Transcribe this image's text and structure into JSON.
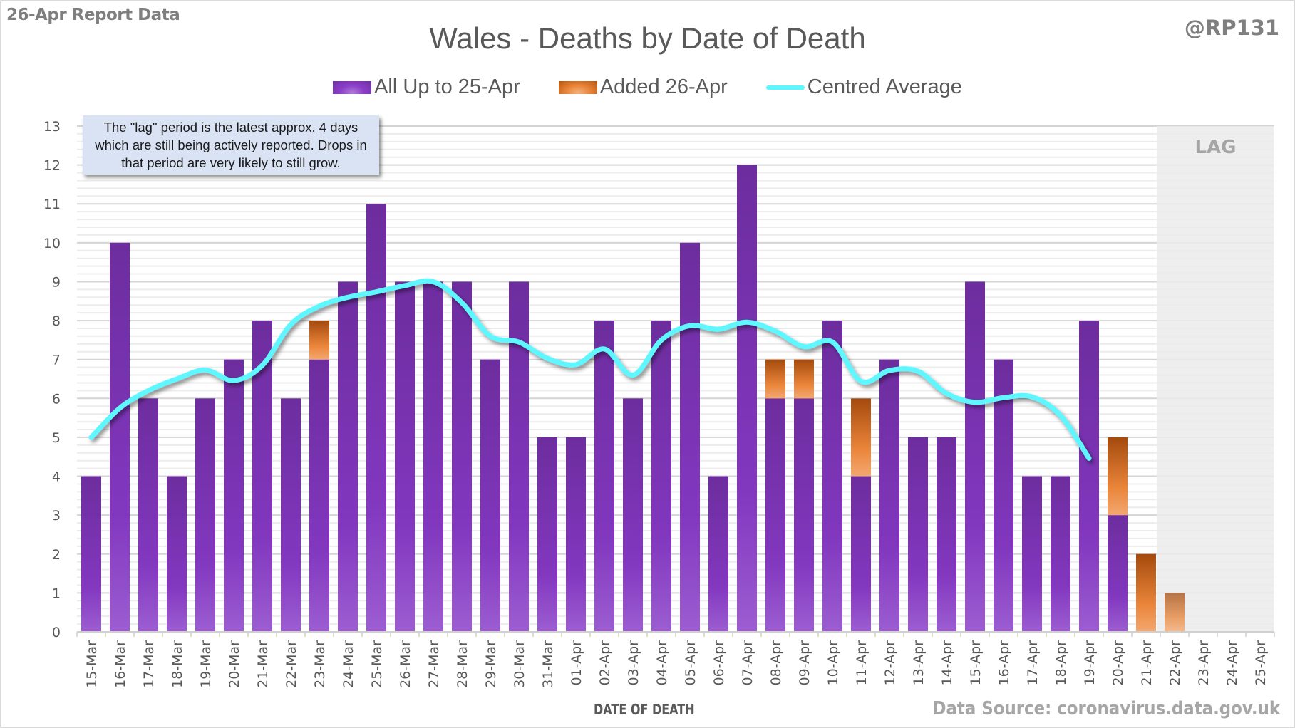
{
  "header": {
    "report_label": "26-Apr Report Data",
    "handle": "@RP131"
  },
  "note": "The \"lag\" period is the latest approx. 4 days which are still being actively reported.  Drops in that period are very likely to still grow.",
  "footer": {
    "source": "Data Source: coronavirus.data.gov.uk"
  },
  "colors": {
    "base": "#7030a0",
    "added": "#e8843a",
    "average": "#5ff7ff",
    "lag_shade": "#ebebeb"
  },
  "chart_data": {
    "type": "bar",
    "stacked": true,
    "title": "Wales - Deaths by Date of Death",
    "xlabel": "DATE OF DEATH",
    "ylabel": "",
    "ylim": [
      0,
      13
    ],
    "yticks": [
      0,
      1,
      2,
      3,
      4,
      5,
      6,
      7,
      8,
      9,
      10,
      11,
      12,
      13
    ],
    "grid": true,
    "legend_position": "top",
    "lag_region": {
      "label": "LAG",
      "from": "22-Apr",
      "to": "25-Apr"
    },
    "categories": [
      "15-Mar",
      "16-Mar",
      "17-Mar",
      "18-Mar",
      "19-Mar",
      "20-Mar",
      "21-Mar",
      "22-Mar",
      "23-Mar",
      "24-Mar",
      "25-Mar",
      "26-Mar",
      "27-Mar",
      "28-Mar",
      "29-Mar",
      "30-Mar",
      "31-Mar",
      "01-Apr",
      "02-Apr",
      "03-Apr",
      "04-Apr",
      "05-Apr",
      "06-Apr",
      "07-Apr",
      "08-Apr",
      "09-Apr",
      "10-Apr",
      "11-Apr",
      "12-Apr",
      "13-Apr",
      "14-Apr",
      "15-Apr",
      "16-Apr",
      "17-Apr",
      "18-Apr",
      "19-Apr",
      "20-Apr",
      "21-Apr",
      "22-Apr",
      "23-Apr",
      "24-Apr",
      "25-Apr"
    ],
    "series": [
      {
        "name": "All Up to 25-Apr",
        "kind": "bar",
        "values": [
          4,
          10,
          6,
          4,
          6,
          7,
          8,
          6,
          7,
          9,
          11,
          9,
          9,
          9,
          7,
          9,
          5,
          5,
          8,
          6,
          8,
          10,
          4,
          12,
          6,
          6,
          8,
          4,
          7,
          5,
          5,
          9,
          7,
          4,
          4,
          8,
          3,
          0,
          0,
          0,
          0,
          0
        ]
      },
      {
        "name": "Added 26-Apr",
        "kind": "bar",
        "values": [
          0,
          0,
          0,
          0,
          0,
          0,
          0,
          0,
          1,
          0,
          0,
          0,
          0,
          0,
          0,
          0,
          0,
          0,
          0,
          0,
          0,
          0,
          0,
          0,
          1,
          1,
          0,
          2,
          0,
          0,
          0,
          0,
          0,
          0,
          0,
          0,
          2,
          2,
          1,
          0,
          0,
          0
        ]
      },
      {
        "name": "Centred Average",
        "kind": "line",
        "values": [
          5.0,
          5.75,
          6.2,
          6.5,
          6.73,
          6.46,
          6.85,
          7.9,
          8.37,
          8.6,
          8.74,
          8.9,
          9.0,
          8.46,
          7.6,
          7.45,
          7.03,
          6.87,
          7.27,
          6.6,
          7.5,
          7.87,
          7.78,
          7.96,
          7.73,
          7.33,
          7.45,
          6.44,
          6.72,
          6.7,
          6.13,
          5.9,
          6.02,
          6.04,
          5.56,
          4.46,
          null,
          null,
          null,
          null,
          null,
          null
        ]
      }
    ]
  }
}
